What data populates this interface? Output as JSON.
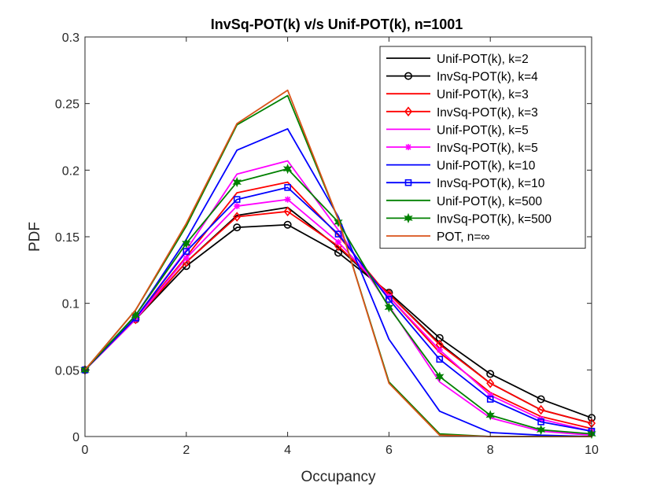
{
  "chart_data": {
    "type": "line",
    "title": "InvSq-POT(k) v/s Unif-POT(k), n=1001",
    "xlabel": "Occupancy",
    "ylabel": "PDF",
    "xlim": [
      0,
      10
    ],
    "ylim": [
      0,
      0.3
    ],
    "x": [
      0,
      1,
      2,
      3,
      4,
      5,
      6,
      7,
      8,
      9,
      10
    ],
    "xticks": [
      "0",
      "2",
      "4",
      "6",
      "8",
      "10"
    ],
    "yticks": [
      "0",
      "0.05",
      "0.1",
      "0.15",
      "0.2",
      "0.25",
      "0.3"
    ],
    "grid": false,
    "legend_position": "top-right",
    "series": [
      {
        "name": "Unif-POT(k), k=2",
        "color": "#000000",
        "marker": "none",
        "values": [
          0.05,
          0.088,
          0.131,
          0.166,
          0.172,
          0.142,
          0.107,
          0.07,
          0.04,
          0.02,
          0.01
        ]
      },
      {
        "name": "InvSq-POT(k), k=4",
        "color": "#000000",
        "marker": "circle",
        "values": [
          0.05,
          0.088,
          0.128,
          0.157,
          0.159,
          0.138,
          0.108,
          0.074,
          0.047,
          0.028,
          0.014
        ]
      },
      {
        "name": "Unif-POT(k), k=3",
        "color": "#ff0000",
        "marker": "none",
        "values": [
          0.05,
          0.089,
          0.135,
          0.183,
          0.191,
          0.151,
          0.105,
          0.063,
          0.033,
          0.015,
          0.006
        ]
      },
      {
        "name": "InvSq-POT(k), k=3",
        "color": "#ff0000",
        "marker": "diamond",
        "values": [
          0.05,
          0.088,
          0.131,
          0.165,
          0.169,
          0.143,
          0.107,
          0.069,
          0.04,
          0.02,
          0.01
        ]
      },
      {
        "name": "Unif-POT(k), k=5",
        "color": "#ff00ff",
        "marker": "none",
        "values": [
          0.05,
          0.089,
          0.14,
          0.197,
          0.207,
          0.155,
          0.098,
          0.041,
          0.014,
          0.004,
          0.001
        ]
      },
      {
        "name": "InvSq-POT(k), k=5",
        "color": "#ff00ff",
        "marker": "asterisk",
        "values": [
          0.05,
          0.088,
          0.134,
          0.173,
          0.178,
          0.146,
          0.105,
          0.065,
          0.031,
          0.013,
          0.004
        ]
      },
      {
        "name": "Unif-POT(k), k=10",
        "color": "#0000ff",
        "marker": "none",
        "values": [
          0.05,
          0.091,
          0.148,
          0.215,
          0.231,
          0.165,
          0.073,
          0.019,
          0.003,
          0.001,
          0.0
        ]
      },
      {
        "name": "InvSq-POT(k), k=10",
        "color": "#0000ff",
        "marker": "square",
        "values": [
          0.05,
          0.089,
          0.139,
          0.178,
          0.187,
          0.152,
          0.103,
          0.058,
          0.028,
          0.011,
          0.004
        ]
      },
      {
        "name": "Unif-POT(k), k=500",
        "color": "#008000",
        "marker": "none",
        "values": [
          0.05,
          0.095,
          0.158,
          0.234,
          0.256,
          0.163,
          0.041,
          0.002,
          0.0,
          0.0,
          0.0
        ]
      },
      {
        "name": "InvSq-POT(k), k=500",
        "color": "#008000",
        "marker": "hexstar",
        "values": [
          0.05,
          0.091,
          0.145,
          0.191,
          0.201,
          0.161,
          0.097,
          0.045,
          0.016,
          0.005,
          0.002
        ]
      },
      {
        "name": "POT, n=∞",
        "color": "#d95319",
        "marker": "none",
        "values": [
          0.05,
          0.095,
          0.16,
          0.235,
          0.26,
          0.163,
          0.04,
          0.001,
          0.0,
          0.0,
          0.0
        ]
      }
    ]
  }
}
